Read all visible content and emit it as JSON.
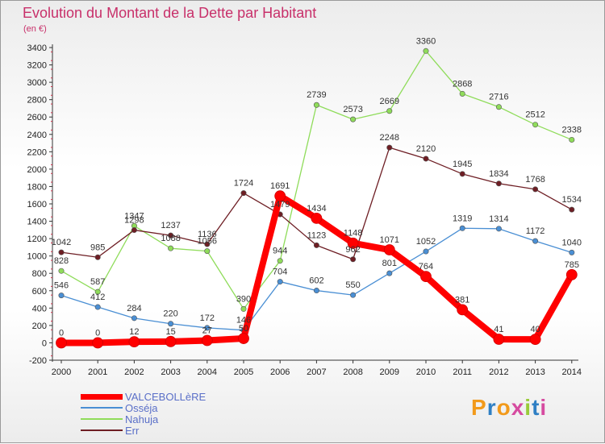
{
  "header": {
    "title": "Evolution du Montant de la Dette par Habitant",
    "subtitle": "(en €)"
  },
  "logo": {
    "text": "Proxiti",
    "colors": [
      "#f29a1b",
      "#2f7fc4",
      "#f29a1b",
      "#d64ba0",
      "#9acb3a",
      "#2f7fc4",
      "#d64ba0"
    ]
  },
  "chart_data": {
    "type": "line",
    "title": "Evolution du Montant de la Dette par Habitant",
    "subtitle": "(en €)",
    "x": [
      "2000",
      "2001",
      "2002",
      "2003",
      "2004",
      "2005",
      "2006",
      "2007",
      "2008",
      "2009",
      "2010",
      "2011",
      "2012",
      "2013",
      "2014"
    ],
    "ylim": [
      -200,
      3400
    ],
    "yticks": [
      -200,
      0,
      200,
      400,
      600,
      800,
      1000,
      1200,
      1400,
      1600,
      1800,
      2000,
      2200,
      2400,
      2600,
      2800,
      3000,
      3200,
      3400
    ],
    "grid": false,
    "legend": "bottom-left",
    "series": [
      {
        "name": "VALCEBOLLèRE",
        "color": "#ff0000",
        "values": [
          0,
          0,
          12,
          15,
          27,
          50,
          1691,
          1434,
          1148,
          1071,
          764,
          381,
          41,
          40,
          785
        ]
      },
      {
        "name": "Osséja",
        "color": "#4a8fd4",
        "values": [
          546,
          412,
          284,
          220,
          172,
          146,
          704,
          602,
          550,
          801,
          1052,
          1319,
          1314,
          1172,
          1040
        ]
      },
      {
        "name": "Nahuja",
        "color": "#8fdc5a",
        "values": [
          828,
          587,
          1347,
          1088,
          1056,
          390,
          944,
          2739,
          2573,
          2669,
          3360,
          2868,
          2716,
          2512,
          2338
        ]
      },
      {
        "name": "Err",
        "color": "#6e1e24",
        "values": [
          1042,
          985,
          1298,
          1237,
          1136,
          1724,
          1479,
          1123,
          962,
          2248,
          2120,
          1945,
          1834,
          1768,
          1534
        ]
      }
    ]
  }
}
